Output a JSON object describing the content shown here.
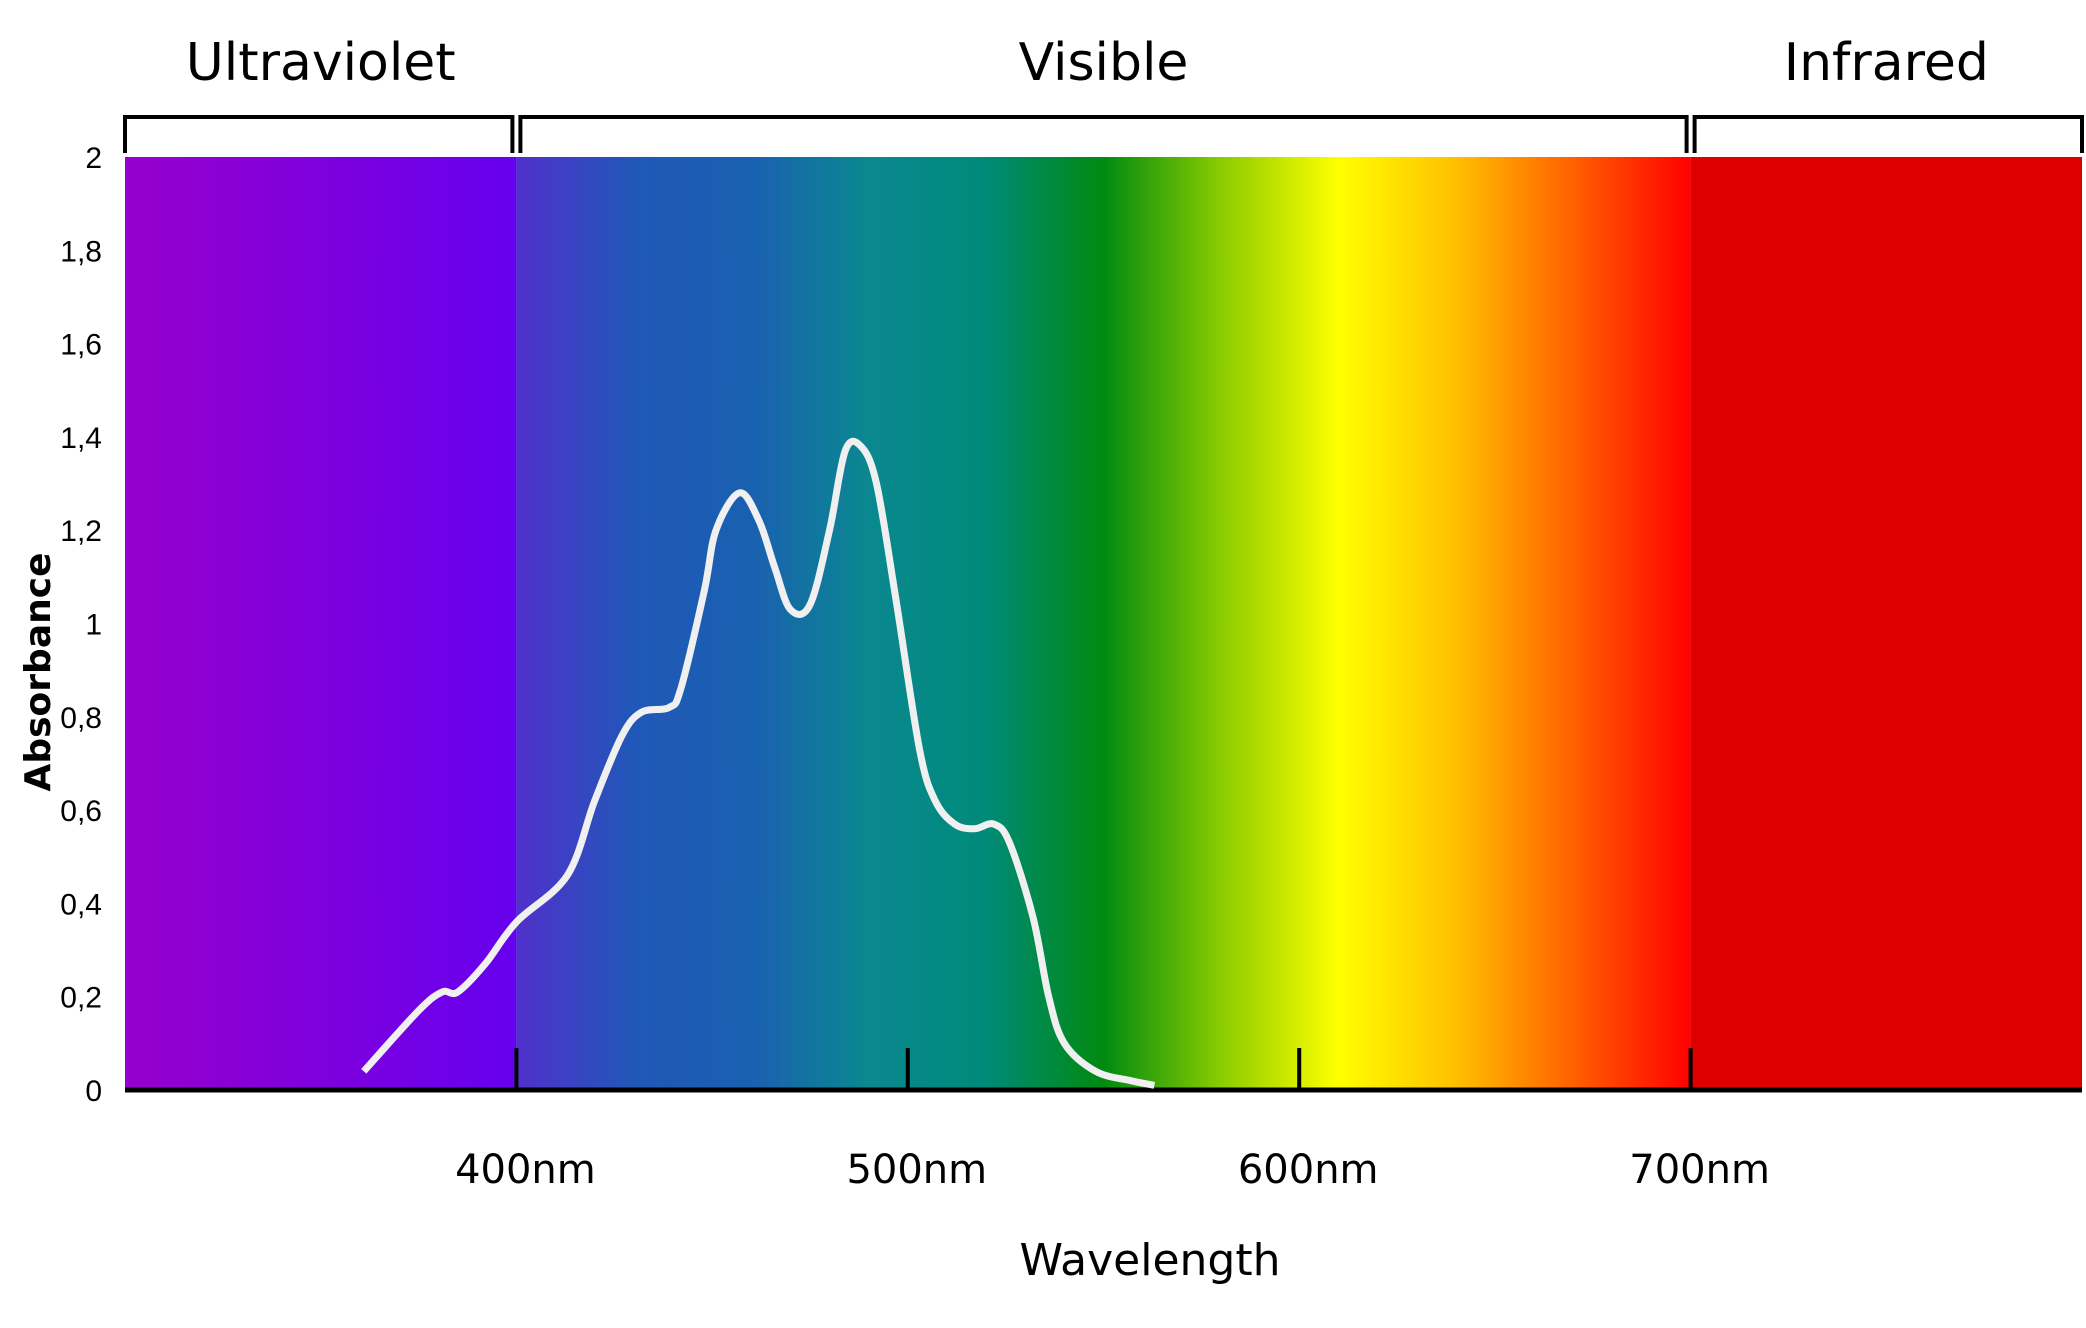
{
  "chart_data": {
    "type": "line",
    "title": "",
    "xlabel": "Wavelength",
    "ylabel": "Absorbance",
    "x_unit": "nm",
    "xlim": [
      300,
      800
    ],
    "ylim": [
      0,
      2
    ],
    "y_ticks": [
      0,
      0.2,
      0.4,
      0.6,
      0.8,
      1,
      1.2,
      1.4,
      1.6,
      1.8,
      2
    ],
    "y_tick_labels": [
      "0",
      "0,2",
      "0,4",
      "0,6",
      "0,8",
      "1",
      "1,2",
      "1,4",
      "1,6",
      "1,8",
      "2"
    ],
    "x_ticks": [
      400,
      500,
      600,
      700
    ],
    "x_tick_labels": [
      "400nm",
      "500nm",
      "600nm",
      "700nm"
    ],
    "regions": [
      {
        "label": "Ultraviolet",
        "from": 300,
        "to": 400
      },
      {
        "label": "Visible",
        "from": 400,
        "to": 700
      },
      {
        "label": "Infrared",
        "from": 700,
        "to": 800
      }
    ],
    "spectrum_colors": {
      "ultraviolet": [
        "#9600cc",
        "#6600ee"
      ],
      "visible": [
        "#5030cc",
        "#2058b8",
        "#1a60b0",
        "#0a8890",
        "#008a78",
        "#008a10",
        "#8acc00",
        "#ffff00",
        "#ffc000",
        "#ff6000",
        "#ff0000"
      ],
      "infrared": "#dd0000"
    },
    "series": [
      {
        "name": "Absorbance",
        "color": "#f0f0f0",
        "x": [
          361,
          375,
          381,
          385,
          392,
          400,
          413,
          420,
          427,
          432,
          439,
          442,
          448,
          451,
          457,
          462,
          466,
          470,
          475,
          480,
          484,
          488,
          492,
          497,
          503,
          507,
          512,
          517,
          522,
          526,
          532,
          536,
          540,
          548,
          557,
          563
        ],
        "y": [
          0.04,
          0.17,
          0.21,
          0.21,
          0.27,
          0.36,
          0.46,
          0.62,
          0.76,
          0.81,
          0.82,
          0.86,
          1.07,
          1.2,
          1.28,
          1.22,
          1.12,
          1.03,
          1.04,
          1.2,
          1.37,
          1.38,
          1.3,
          1.05,
          0.73,
          0.62,
          0.57,
          0.56,
          0.57,
          0.53,
          0.37,
          0.2,
          0.1,
          0.04,
          0.02,
          0.01
        ]
      }
    ]
  }
}
